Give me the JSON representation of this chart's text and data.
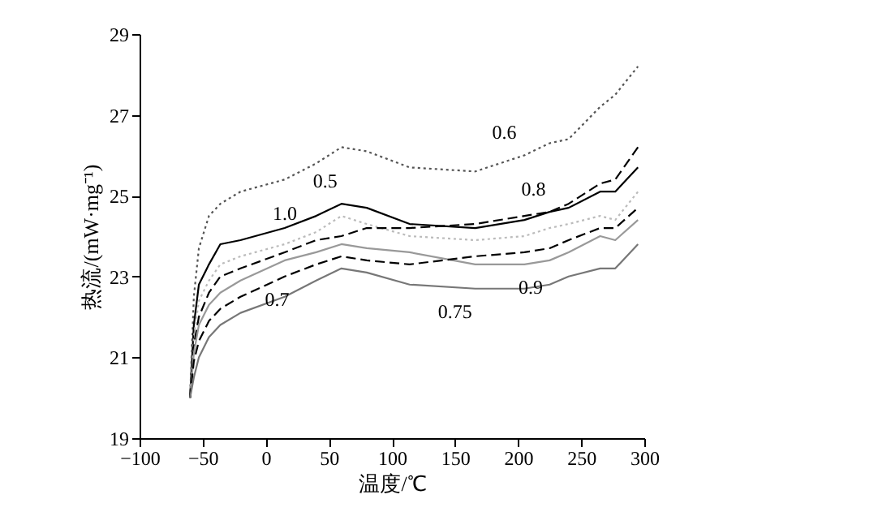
{
  "chart_data": {
    "type": "line",
    "xlabel": "温度/℃",
    "ylabel": "热流/(mW·mg⁻¹)",
    "x": [
      -60,
      -57,
      -53,
      -45,
      -36,
      -20,
      15,
      40,
      60,
      80,
      114,
      166,
      205,
      225,
      240,
      265,
      277,
      295
    ],
    "xlim": [
      -100,
      300
    ],
    "xticks": [
      -100,
      -50,
      0,
      50,
      100,
      150,
      200,
      250,
      300
    ],
    "ylim": [
      19,
      29
    ],
    "yticks": [
      19,
      21,
      23,
      25,
      27,
      29
    ],
    "grid": false,
    "marker": "none",
    "series": [
      {
        "color": "#555555",
        "line_style": "dotted",
        "values": [
          20.0,
          22.5,
          23.7,
          24.5,
          24.8,
          25.1,
          25.4,
          25.8,
          26.2,
          26.1,
          25.7,
          25.6,
          26.0,
          26.3,
          26.4,
          27.2,
          27.5,
          28.2
        ]
      },
      {
        "color": "#000000",
        "line_style": "solid",
        "values": [
          20.0,
          21.8,
          22.8,
          23.3,
          23.8,
          23.9,
          24.2,
          24.5,
          24.8,
          24.7,
          24.3,
          24.2,
          24.4,
          24.6,
          24.7,
          25.1,
          25.1,
          25.7
        ]
      },
      {
        "color": "#bbbbbb",
        "line_style": "dotted",
        "values": [
          20.0,
          21.5,
          22.4,
          22.9,
          23.3,
          23.5,
          23.8,
          24.1,
          24.5,
          24.3,
          24.0,
          23.9,
          24.0,
          24.2,
          24.3,
          24.5,
          24.4,
          25.1
        ]
      },
      {
        "color": "#000000",
        "line_style": "dashed",
        "values": [
          20.0,
          21.3,
          22.0,
          22.6,
          23.0,
          23.2,
          23.6,
          23.9,
          24.0,
          24.2,
          24.2,
          24.3,
          24.5,
          24.6,
          24.8,
          25.3,
          25.4,
          26.2
        ]
      },
      {
        "color": "#999999",
        "line_style": "solid",
        "values": [
          20.0,
          21.1,
          21.8,
          22.3,
          22.6,
          22.9,
          23.4,
          23.6,
          23.8,
          23.7,
          23.6,
          23.3,
          23.3,
          23.4,
          23.6,
          24.0,
          23.9,
          24.4
        ]
      },
      {
        "color": "#000000",
        "line_style": "dashed",
        "values": [
          20.0,
          20.9,
          21.4,
          21.9,
          22.2,
          22.5,
          23.0,
          23.3,
          23.5,
          23.4,
          23.3,
          23.5,
          23.6,
          23.7,
          23.9,
          24.2,
          24.2,
          24.7
        ]
      },
      {
        "color": "#777777",
        "line_style": "solid",
        "values": [
          20.0,
          20.5,
          21.0,
          21.5,
          21.8,
          22.1,
          22.5,
          22.9,
          23.2,
          23.1,
          22.8,
          22.7,
          22.7,
          22.8,
          23.0,
          23.2,
          23.2,
          23.8
        ]
      }
    ],
    "annotations": [
      {
        "text": "0.6",
        "x": 202,
        "y": 26.0
      },
      {
        "text": "1.0",
        "x": 28,
        "y": 24.0
      },
      {
        "text": "0.5",
        "x": 60,
        "y": 24.8
      },
      {
        "text": "0.8",
        "x": 225,
        "y": 24.6
      },
      {
        "text": "0.7",
        "x": 9,
        "y": 23.0
      },
      {
        "text": "0.75",
        "x": 150,
        "y": 22.7
      },
      {
        "text": "0.9",
        "x": 210,
        "y": 23.3
      }
    ]
  }
}
